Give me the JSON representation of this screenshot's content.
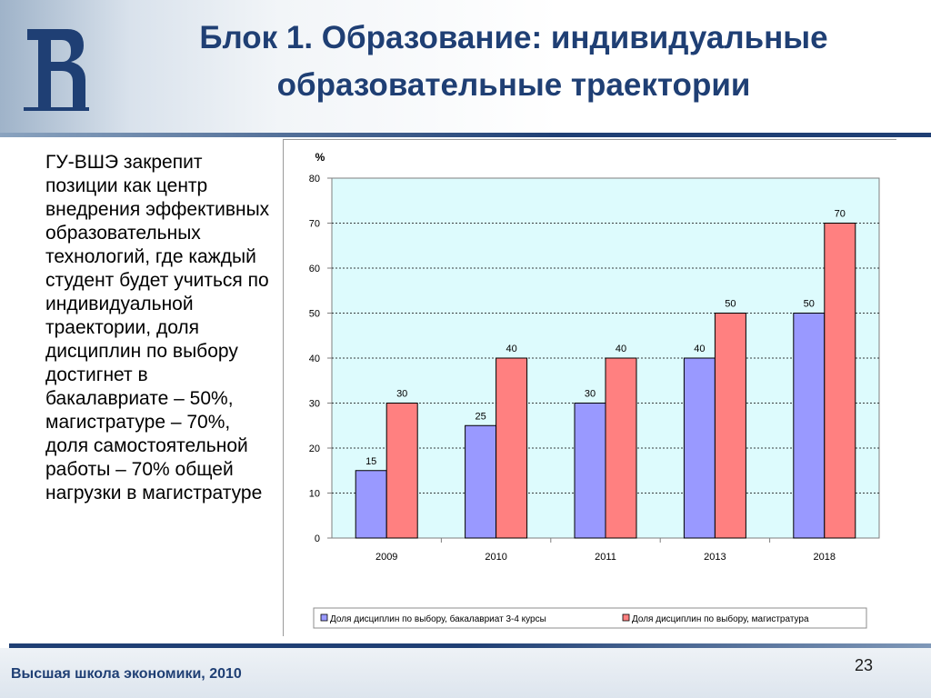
{
  "slide": {
    "title_line1": "Блок 1. Образование: индивидуальные",
    "title_line2": "образовательные траектории",
    "body": "ГУ-ВШЭ закрепит позиции как центр внедрения эффективных образовательных технологий, где каждый студент будет учиться по индивидуальной траектории, доля дисциплин по выбору достигнет в бакалавриате – 50%, магистратуре – 70%, доля самостоятельной работы – 70% общей нагрузки в магистратуре",
    "footer": "Высшая школа экономики, 2010",
    "page_number": "23"
  },
  "colors": {
    "brand": "#1f3f74",
    "plot_bg": "#ddfbfd",
    "series_bachelor": "#9999ff",
    "series_master": "#ff8080"
  },
  "chart_data": {
    "type": "bar",
    "categories": [
      "2009",
      "2010",
      "2011",
      "2013",
      "2018"
    ],
    "series": [
      {
        "name": "Доля дисциплин по выбору, бакалавриат 3-4 курсы",
        "values": [
          15,
          25,
          30,
          40,
          50
        ]
      },
      {
        "name": "Доля дисциплин по выбору, магистратура",
        "values": [
          30,
          40,
          40,
          50,
          70
        ]
      }
    ],
    "ylabel": "%",
    "ylim": [
      0,
      80
    ],
    "yticks": [
      0,
      10,
      20,
      30,
      40,
      50,
      60,
      70,
      80
    ],
    "grid": true,
    "legend_position": "bottom"
  }
}
